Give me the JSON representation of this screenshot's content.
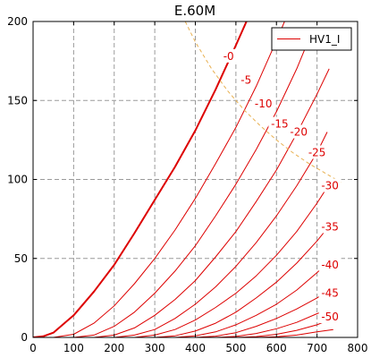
{
  "chart_data": {
    "type": "line",
    "title": "E.60M",
    "xlabel": "",
    "ylabel": "",
    "xlim": [
      0,
      800
    ],
    "ylim": [
      0,
      200
    ],
    "x_ticks": [
      0,
      100,
      200,
      300,
      400,
      500,
      600,
      700,
      800
    ],
    "y_ticks": [
      0,
      50,
      100,
      150,
      200
    ],
    "grid": true,
    "legend": {
      "placement": "top-right",
      "entries": [
        {
          "name": "HV1_I",
          "color": "#dd0000"
        }
      ]
    },
    "colors": {
      "curve": "#dd0000",
      "dissipation": "#e8b050",
      "grid": "#9a9a9a"
    },
    "series": [
      {
        "label": "-0",
        "points": [
          [
            0,
            0
          ],
          [
            25,
            0.7
          ],
          [
            50,
            3
          ],
          [
            100,
            14
          ],
          [
            150,
            29
          ],
          [
            200,
            46
          ],
          [
            250,
            66
          ],
          [
            300,
            87
          ],
          [
            350,
            108
          ],
          [
            400,
            131
          ],
          [
            450,
            157
          ],
          [
            500,
            185
          ],
          [
            526,
            200
          ]
        ],
        "bold": true
      },
      {
        "label": "-5",
        "points": [
          [
            50,
            0
          ],
          [
            100,
            2
          ],
          [
            150,
            9
          ],
          [
            200,
            20
          ],
          [
            250,
            34
          ],
          [
            300,
            50
          ],
          [
            350,
            68
          ],
          [
            400,
            88
          ],
          [
            450,
            110
          ],
          [
            500,
            133
          ],
          [
            550,
            159
          ],
          [
            600,
            188
          ],
          [
            620,
            200
          ]
        ]
      },
      {
        "label": "-10",
        "points": [
          [
            100,
            0
          ],
          [
            150,
            1.5
          ],
          [
            200,
            7
          ],
          [
            250,
            16
          ],
          [
            300,
            28
          ],
          [
            350,
            42
          ],
          [
            400,
            58
          ],
          [
            450,
            77
          ],
          [
            500,
            97
          ],
          [
            550,
            119
          ],
          [
            600,
            143
          ],
          [
            650,
            170
          ],
          [
            690,
            195
          ]
        ]
      },
      {
        "label": "-15",
        "points": [
          [
            150,
            0
          ],
          [
            200,
            1.5
          ],
          [
            250,
            6
          ],
          [
            300,
            14
          ],
          [
            350,
            24
          ],
          [
            400,
            36
          ],
          [
            450,
            51
          ],
          [
            500,
            67
          ],
          [
            550,
            86
          ],
          [
            600,
            106
          ],
          [
            650,
            129
          ],
          [
            700,
            154
          ],
          [
            730,
            170
          ]
        ]
      },
      {
        "label": "-20",
        "points": [
          [
            200,
            0
          ],
          [
            250,
            1.5
          ],
          [
            300,
            5
          ],
          [
            350,
            12
          ],
          [
            400,
            21
          ],
          [
            450,
            32
          ],
          [
            500,
            45
          ],
          [
            550,
            60
          ],
          [
            600,
            77
          ],
          [
            650,
            96
          ],
          [
            700,
            117
          ],
          [
            725,
            130
          ]
        ]
      },
      {
        "label": "-25",
        "points": [
          [
            250,
            0
          ],
          [
            300,
            1.5
          ],
          [
            350,
            5
          ],
          [
            400,
            11
          ],
          [
            450,
            19
          ],
          [
            500,
            28
          ],
          [
            550,
            39
          ],
          [
            600,
            52
          ],
          [
            650,
            67
          ],
          [
            700,
            85
          ],
          [
            725,
            95
          ]
        ]
      },
      {
        "label": "-30",
        "points": [
          [
            300,
            0
          ],
          [
            350,
            1
          ],
          [
            400,
            4
          ],
          [
            450,
            9
          ],
          [
            500,
            16
          ],
          [
            550,
            25
          ],
          [
            600,
            35
          ],
          [
            650,
            47
          ],
          [
            700,
            61
          ],
          [
            725,
            69
          ]
        ]
      },
      {
        "label": "-35",
        "points": [
          [
            350,
            0
          ],
          [
            400,
            1
          ],
          [
            450,
            3.5
          ],
          [
            500,
            8
          ],
          [
            550,
            14
          ],
          [
            600,
            21
          ],
          [
            650,
            30
          ],
          [
            700,
            41
          ],
          [
            725,
            47
          ]
        ]
      },
      {
        "label": "-40",
        "points": [
          [
            400,
            0
          ],
          [
            450,
            0.8
          ],
          [
            500,
            3
          ],
          [
            550,
            7
          ],
          [
            600,
            12
          ],
          [
            650,
            18
          ],
          [
            700,
            25
          ],
          [
            725,
            29
          ]
        ]
      },
      {
        "label": "-45",
        "points": [
          [
            450,
            0
          ],
          [
            500,
            0.6
          ],
          [
            550,
            2.5
          ],
          [
            600,
            5.5
          ],
          [
            650,
            9.5
          ],
          [
            700,
            15
          ],
          [
            720,
            17
          ]
        ]
      },
      {
        "label": "-50",
        "points": [
          [
            500,
            0
          ],
          [
            550,
            0.5
          ],
          [
            600,
            2
          ],
          [
            650,
            4.5
          ],
          [
            700,
            8
          ],
          [
            715,
            9.5
          ]
        ]
      },
      {
        "label": "",
        "points": [
          [
            550,
            0
          ],
          [
            600,
            0.4
          ],
          [
            650,
            1.5
          ],
          [
            700,
            3.5
          ],
          [
            740,
            5
          ]
        ]
      }
    ],
    "curve_labels": [
      {
        "text": "-0",
        "x": 482,
        "y": 178
      },
      {
        "text": "-5",
        "x": 525,
        "y": 163
      },
      {
        "text": "-10",
        "x": 568,
        "y": 148
      },
      {
        "text": "-15",
        "x": 608,
        "y": 135
      },
      {
        "text": "-20",
        "x": 655,
        "y": 130
      },
      {
        "text": "-25",
        "x": 700,
        "y": 117
      },
      {
        "text": "-30",
        "x": 732,
        "y": 96
      },
      {
        "text": "-35",
        "x": 732,
        "y": 70
      },
      {
        "text": "-40",
        "x": 732,
        "y": 46
      },
      {
        "text": "-45",
        "x": 732,
        "y": 28
      },
      {
        "text": "-50",
        "x": 732,
        "y": 13
      }
    ],
    "dissipation_curve": [
      [
        375,
        200
      ],
      [
        400,
        187
      ],
      [
        440,
        170
      ],
      [
        480,
        156
      ],
      [
        520,
        144
      ],
      [
        560,
        134
      ],
      [
        600,
        125
      ],
      [
        640,
        117
      ],
      [
        680,
        110
      ],
      [
        720,
        104
      ],
      [
        760,
        98
      ]
    ]
  }
}
